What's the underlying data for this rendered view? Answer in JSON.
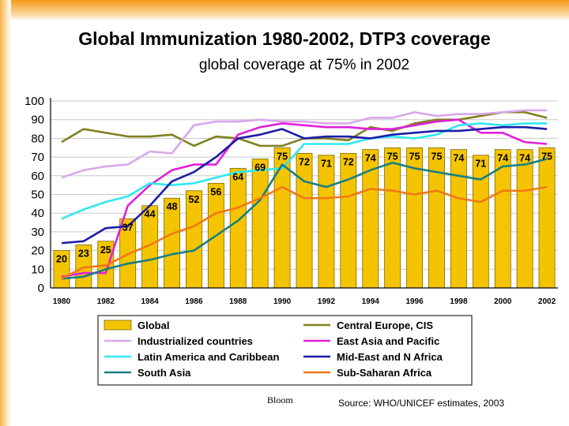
{
  "page": {
    "title": "Global  Immunization 1980-2002, DTP3 coverage",
    "subtitle": "global coverage at 75% in 2002",
    "author": "Bloom",
    "source": "Source: WHO/UNICEF estimates, 2003"
  },
  "chart_data": {
    "type": "bar+line",
    "title": "",
    "xlabel": "",
    "ylabel": "",
    "ylim": [
      0,
      100
    ],
    "yticks": [
      0,
      10,
      20,
      30,
      40,
      50,
      60,
      70,
      80,
      90,
      100
    ],
    "x": [
      1980,
      1981,
      1982,
      1983,
      1984,
      1985,
      1986,
      1987,
      1988,
      1989,
      1990,
      1991,
      1992,
      1993,
      1994,
      1995,
      1996,
      1997,
      1998,
      1999,
      2000,
      2001,
      2002
    ],
    "xtick_labels": [
      "1980",
      "1982",
      "1984",
      "1986",
      "1988",
      "1990",
      "1992",
      "1994",
      "1996",
      "1998",
      "2000",
      "2002"
    ],
    "grid": "horizontal",
    "legend_position": "bottom",
    "bars": {
      "name": "Global",
      "color": "#f5c400",
      "values": [
        20,
        23,
        25,
        37,
        44,
        48,
        52,
        56,
        64,
        69,
        75,
        72,
        71,
        72,
        74,
        75,
        75,
        75,
        74,
        71,
        74,
        74,
        75
      ],
      "labels": [
        "20",
        "23",
        "25",
        "37",
        "44",
        "48",
        "52",
        "56",
        "64",
        "69",
        "75",
        "72",
        "71",
        "72",
        "74",
        "75",
        "75",
        "75",
        "74",
        "71",
        "74",
        "74",
        "75"
      ]
    },
    "series": [
      {
        "name": "Central Europe, CIS",
        "color": "#808020",
        "values": [
          78,
          85,
          83,
          81,
          81,
          82,
          76,
          81,
          80,
          76,
          76,
          80,
          80,
          79,
          86,
          84,
          88,
          90,
          90,
          92,
          94,
          94,
          91
        ]
      },
      {
        "name": "Industrialized countries",
        "color": "#d8a8ec",
        "values": [
          59,
          63,
          65,
          66,
          73,
          72,
          87,
          89,
          89,
          90,
          89,
          89,
          88,
          88,
          91,
          91,
          94,
          92,
          93,
          93,
          94,
          95,
          95
        ]
      },
      {
        "name": "East Asia and Pacific",
        "color": "#e020d8",
        "values": [
          6,
          8,
          8,
          44,
          55,
          63,
          66,
          66,
          82,
          86,
          88,
          87,
          86,
          86,
          85,
          85,
          87,
          89,
          90,
          83,
          83,
          78,
          77
        ]
      },
      {
        "name": "Latin America and Caribbean",
        "color": "#30e8f0",
        "values": [
          37,
          42,
          46,
          49,
          56,
          55,
          56,
          59,
          62,
          63,
          64,
          77,
          77,
          77,
          80,
          81,
          80,
          82,
          87,
          88,
          87,
          88,
          88
        ]
      },
      {
        "name": "Mid-East and N Africa",
        "color": "#1c1ca8",
        "values": [
          24,
          25,
          32,
          33,
          44,
          57,
          62,
          70,
          80,
          82,
          85,
          80,
          81,
          81,
          80,
          82,
          83,
          84,
          84,
          85,
          86,
          86,
          85
        ]
      },
      {
        "name": "South Asia",
        "color": "#1a8080",
        "values": [
          5,
          6,
          10,
          13,
          15,
          18,
          20,
          28,
          36,
          47,
          66,
          57,
          54,
          58,
          63,
          67,
          64,
          62,
          60,
          58,
          65,
          66,
          69
        ]
      },
      {
        "name": "Sub-Saharan Africa",
        "color": "#f07818",
        "values": [
          5,
          11,
          12,
          18,
          23,
          29,
          33,
          40,
          43,
          48,
          54,
          48,
          48,
          49,
          53,
          52,
          50,
          52,
          48,
          46,
          52,
          52,
          54
        ]
      }
    ],
    "legend": [
      {
        "name": "Global",
        "kind": "bar",
        "color": "#f5c400"
      },
      {
        "name": "Central Europe, CIS",
        "kind": "line",
        "color": "#808020"
      },
      {
        "name": "Industrialized countries",
        "kind": "line",
        "color": "#d8a8ec"
      },
      {
        "name": "East Asia and Pacific",
        "kind": "line",
        "color": "#e020d8"
      },
      {
        "name": "Latin America and Caribbean",
        "kind": "line",
        "color": "#30e8f0"
      },
      {
        "name": "Mid-East and N Africa",
        "kind": "line",
        "color": "#1c1ca8"
      },
      {
        "name": "South Asia",
        "kind": "line",
        "color": "#1a8080"
      },
      {
        "name": "Sub-Saharan Africa",
        "kind": "line",
        "color": "#f07818"
      }
    ]
  }
}
